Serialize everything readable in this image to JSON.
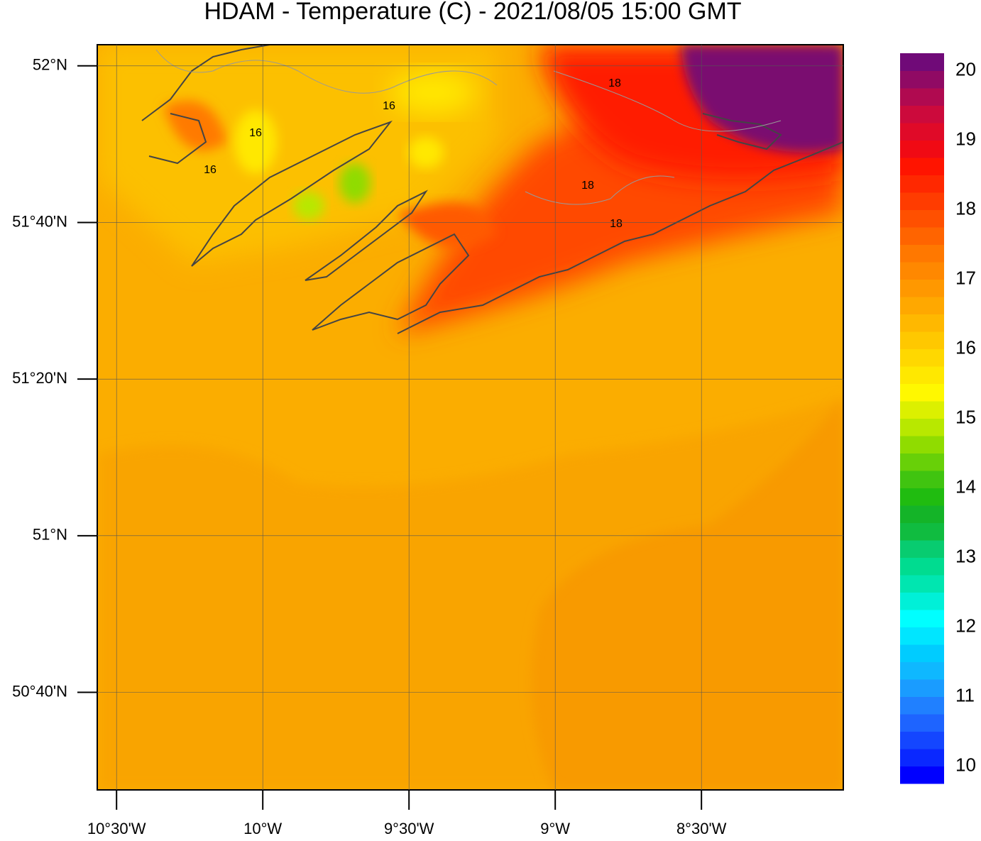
{
  "title": "HDAM - Temperature (C)  -  2021/08/05  15:00 GMT",
  "map": {
    "xlim": [
      -10.566,
      -8.015
    ],
    "ylim": [
      50.459,
      52.045
    ],
    "lat_ticks": [
      {
        "value": 52,
        "label": "52°N"
      },
      {
        "value": 51.6667,
        "label": "51°40'N"
      },
      {
        "value": 51.3333,
        "label": "51°20'N"
      },
      {
        "value": 51,
        "label": "51°N"
      },
      {
        "value": 50.6667,
        "label": "50°40'N"
      }
    ],
    "lon_ticks": [
      {
        "value": -10.5,
        "label": "10°30'W"
      },
      {
        "value": -10,
        "label": "10°W"
      },
      {
        "value": -9.5,
        "label": "9°30'W"
      },
      {
        "value": -9,
        "label": "9°W"
      },
      {
        "value": -8.5,
        "label": "8°30'W"
      }
    ],
    "grid": true,
    "contour_labels": [
      "16",
      "16",
      "16",
      "18",
      "18",
      "18"
    ]
  },
  "colorbar": {
    "lim": [
      9.75,
      20.25
    ],
    "ticks": [
      10,
      11,
      12,
      13,
      14,
      15,
      16,
      17,
      18,
      19,
      20
    ],
    "colors": [
      "#0000ff",
      "#0a28ff",
      "#1446ff",
      "#1e64ff",
      "#2080ff",
      "#1a9cff",
      "#0fb8ff",
      "#00ccff",
      "#00e6ff",
      "#00ffff",
      "#00f0d8",
      "#00e6b0",
      "#00dc90",
      "#08cc70",
      "#10bc40",
      "#14b428",
      "#20bc10",
      "#40c410",
      "#68d008",
      "#90dc00",
      "#b8e800",
      "#dcf000",
      "#fff800",
      "#ffe800",
      "#ffd800",
      "#ffc800",
      "#ffb800",
      "#ffa800",
      "#ff9800",
      "#ff8800",
      "#ff7800",
      "#ff6400",
      "#ff5000",
      "#ff3c00",
      "#ff2800",
      "#ff1400",
      "#f00a14",
      "#e00a28",
      "#cc0a3c",
      "#b00a50",
      "#900a64",
      "#700a78"
    ]
  }
}
